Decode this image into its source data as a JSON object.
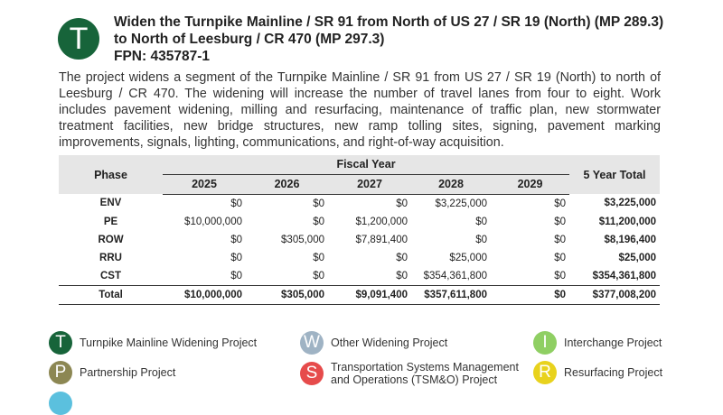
{
  "header": {
    "icon": "T",
    "title_line1": "Widen the Turnpike Mainline / SR 91 from North of US 27 / SR 19 (North) (MP 289.3)",
    "title_line2": "to North of Leesburg / CR 470 (MP 297.3)",
    "fpn": "FPN: 435787-1"
  },
  "description": "The project widens a segment of the Turnpike Mainline / SR 91 from US 27 / SR 19 (North) to north of Leesburg / CR 470. The widening will increase the number of travel lanes from four to eight. Work includes pavement widening, milling and resurfacing, maintenance of traffic plan, new stormwater treatment facilities, new bridge structures, new ramp tolling sites, signing, pavement marking improvements, signals, lighting, communications, and right-of-way acquisition.",
  "table": {
    "phase_header": "Phase",
    "fiscal_year_header": "Fiscal Year",
    "years": [
      "2025",
      "2026",
      "2027",
      "2028",
      "2029"
    ],
    "total_header": "5 Year Total",
    "rows": [
      {
        "phase": "ENV",
        "values": [
          "$0",
          "$0",
          "$0",
          "$3,225,000",
          "$0"
        ],
        "total": "$3,225,000"
      },
      {
        "phase": "PE",
        "values": [
          "$10,000,000",
          "$0",
          "$1,200,000",
          "$0",
          "$0"
        ],
        "total": "$11,200,000"
      },
      {
        "phase": "ROW",
        "values": [
          "$0",
          "$305,000",
          "$7,891,400",
          "$0",
          "$0"
        ],
        "total": "$8,196,400"
      },
      {
        "phase": "RRU",
        "values": [
          "$0",
          "$0",
          "$0",
          "$25,000",
          "$0"
        ],
        "total": "$25,000"
      },
      {
        "phase": "CST",
        "values": [
          "$0",
          "$0",
          "$0",
          "$354,361,800",
          "$0"
        ],
        "total": "$354,361,800"
      }
    ],
    "total_row": {
      "phase": "Total",
      "values": [
        "$10,000,000",
        "$305,000",
        "$9,091,400",
        "$357,611,800",
        "$0"
      ],
      "total": "$377,008,200"
    }
  },
  "legend": [
    {
      "icon": "T",
      "label": "Turnpike Mainline Widening Project"
    },
    {
      "icon": "W",
      "label": "Other Widening Project"
    },
    {
      "icon": "I",
      "label": "Interchange Project"
    },
    {
      "icon": "P",
      "label": "Partnership Project"
    },
    {
      "icon": "S",
      "label": "Transportation Systems Management and Operations (TSM&O) Project"
    },
    {
      "icon": "R",
      "label": "Resurfacing Project"
    }
  ]
}
